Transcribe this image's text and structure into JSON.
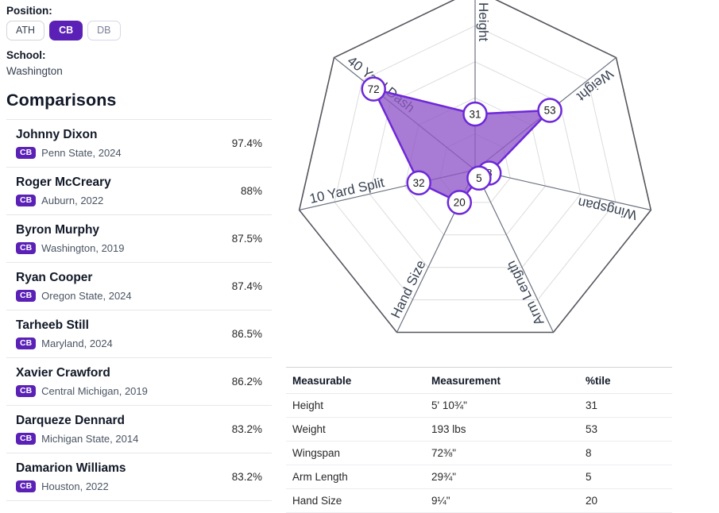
{
  "colors": {
    "accent_purple": "#5b21b6",
    "radar_fill": "#9057c8",
    "radar_stroke": "#6d28d9",
    "radar_grid": "#dcdcdc",
    "radar_axis": "#55555e"
  },
  "filters": {
    "position_label": "Position:",
    "positions": [
      {
        "label": "ATH",
        "selected": false
      },
      {
        "label": "CB",
        "selected": true
      },
      {
        "label": "DB",
        "selected": false
      }
    ],
    "school_label": "School:",
    "school_value": "Washington"
  },
  "comparisons": {
    "title": "Comparisons",
    "players": [
      {
        "name": "Johnny Dixon",
        "position": "CB",
        "school": "Penn State, 2024",
        "match": "97.4%"
      },
      {
        "name": "Roger McCreary",
        "position": "CB",
        "school": "Auburn, 2022",
        "match": "88%"
      },
      {
        "name": "Byron Murphy",
        "position": "CB",
        "school": "Washington, 2019",
        "match": "87.5%"
      },
      {
        "name": "Ryan Cooper",
        "position": "CB",
        "school": "Oregon State, 2024",
        "match": "87.4%"
      },
      {
        "name": "Tarheeb Still",
        "position": "CB",
        "school": "Maryland, 2024",
        "match": "86.5%"
      },
      {
        "name": "Xavier Crawford",
        "position": "CB",
        "school": "Central Michigan, 2019",
        "match": "86.2%"
      },
      {
        "name": "Darqueze Dennard",
        "position": "CB",
        "school": "Michigan State, 2014",
        "match": "83.2%"
      },
      {
        "name": "Damarion Williams",
        "position": "CB",
        "school": "Houston, 2022",
        "match": "83.2%"
      }
    ]
  },
  "chart_data": {
    "type": "radar",
    "categories": [
      "Height",
      "Weight",
      "Wingspan",
      "Arm Length",
      "Hand Size",
      "10 Yard Split",
      "40 Yard Dash"
    ],
    "values": [
      31,
      53,
      8,
      5,
      20,
      32,
      72
    ],
    "range": [
      0,
      100
    ],
    "rings": 5,
    "grid": true,
    "legend": false,
    "point_labels_shown": true
  },
  "measurables_table": {
    "columns": [
      "Measurable",
      "Measurement",
      "%tile"
    ],
    "rows": [
      {
        "measurable": "Height",
        "measurement": "5' 10¾\"",
        "percentile": "31"
      },
      {
        "measurable": "Weight",
        "measurement": "193 lbs",
        "percentile": "53"
      },
      {
        "measurable": "Wingspan",
        "measurement": "72⅜\"",
        "percentile": "8"
      },
      {
        "measurable": "Arm Length",
        "measurement": "29¾\"",
        "percentile": "5"
      },
      {
        "measurable": "Hand Size",
        "measurement": "9¼\"",
        "percentile": "20"
      }
    ]
  }
}
